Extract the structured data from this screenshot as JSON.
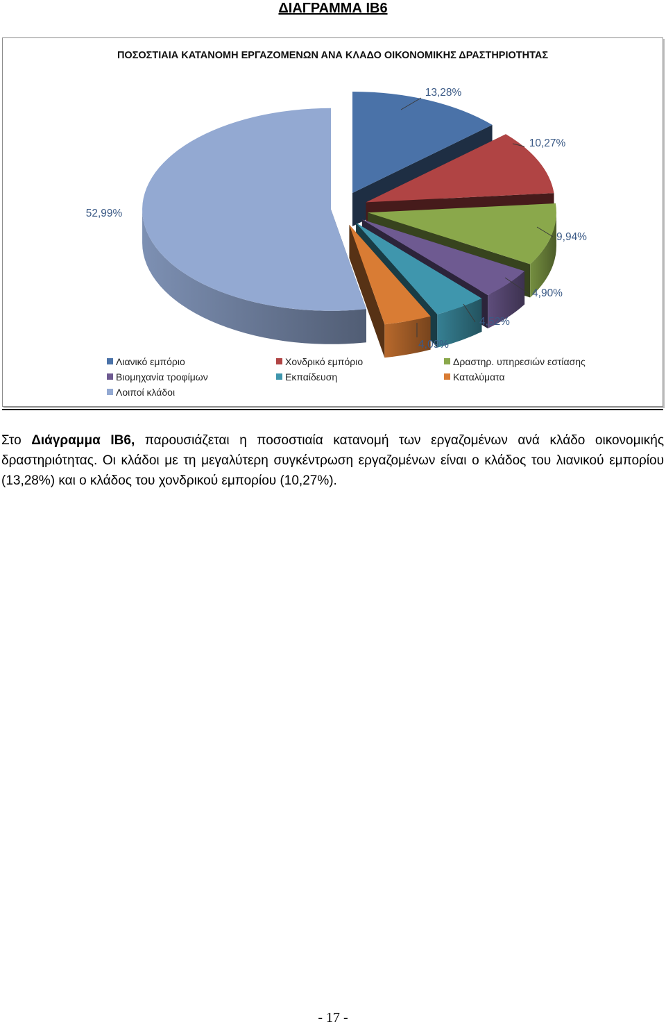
{
  "heading": "ΔΙΑΓΡΑΜΜΑ ΙΒ6",
  "chart_data": {
    "type": "pie",
    "title": "ΠΟΣΟΣΤΙΑΙΑ ΚΑΤΑΝΟΜΗ ΕΡΓΑΖΟΜΕΝΩΝ ΑΝΑ ΚΛΑΔΟ ΟΙΚΟΝΟΜΙΚΗΣ ΔΡΑΣΤΗΡΙΟΤΗΤΑΣ",
    "legend_position": "bottom",
    "slices": [
      {
        "label": "Λιανικό εμπόριο",
        "value": 13.28,
        "value_label": "13,28%",
        "color": "#4a72a8"
      },
      {
        "label": "Χονδρικό εμπόριο",
        "value": 10.27,
        "value_label": "10,27%",
        "color": "#b04444"
      },
      {
        "label": "Δραστηρ. υπηρεσιών εστίασης",
        "value": 9.94,
        "value_label": "9,94%",
        "color": "#8aa84b"
      },
      {
        "label": "Βιομηχανία τροφίμων",
        "value": 4.9,
        "value_label": "4,90%",
        "color": "#6e5a91"
      },
      {
        "label": "Εκπαίδευση",
        "value": 4.52,
        "value_label": "4,52%",
        "color": "#3f96ad"
      },
      {
        "label": "Καταλύματα",
        "value": 4.09,
        "value_label": "4,09%",
        "color": "#d97c34"
      },
      {
        "label": "Λοιποί κλάδοι",
        "value": 52.99,
        "value_label": "52,99%",
        "color": "#93a9d2"
      }
    ]
  },
  "paragraph": {
    "prefix": "Στο ",
    "bold": "Διάγραμμα ΙΒ6,",
    "rest": " παρουσιάζεται η ποσοστιαία κατανομή των εργαζομένων ανά κλάδο οικονομικής δραστηριότητας. Οι κλάδοι με τη μεγαλύτερη συγκέντρωση εργαζομένων είναι ο κλάδος του λιανικού εμπορίου (13,28%) και ο κλάδος του χονδρικού εμπορίου (10,27%)."
  },
  "page_number": "- 17 -"
}
